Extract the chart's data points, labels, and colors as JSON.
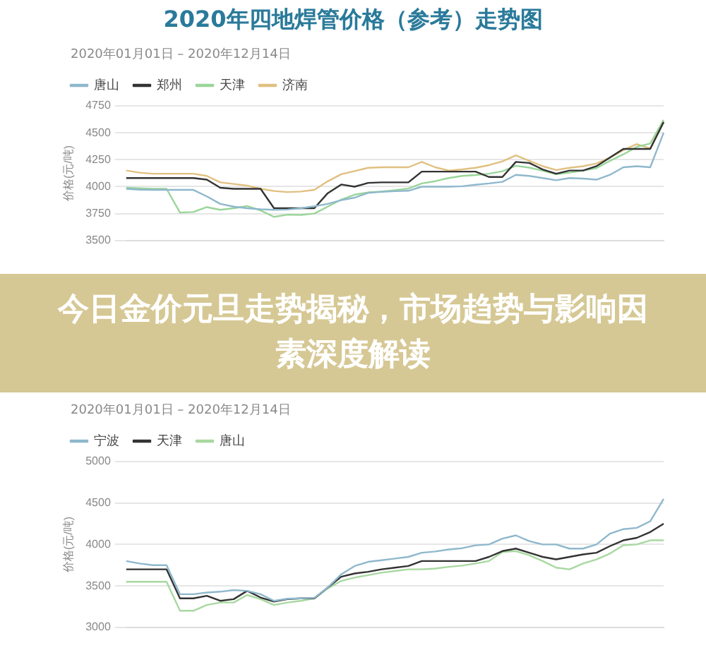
{
  "chart_data": [
    {
      "type": "line",
      "title": "2020年四地焊管价格（参考）走势图",
      "subtitle": "2020年01月01日 – 2020年12月14日",
      "ylabel": "价格(元/吨)",
      "annotations": [
        "今日金价元旦走势揭秘，市场趋势与影响因素深度解读"
      ],
      "categories": [
        null,
        null,
        null,
        null,
        null,
        null,
        null,
        null,
        null,
        null,
        null,
        null,
        null,
        null,
        null,
        null,
        null,
        null,
        null,
        null,
        null,
        null,
        null,
        null,
        null,
        null,
        null,
        null,
        null,
        null,
        null,
        null,
        null,
        null,
        null,
        null,
        null,
        null,
        null,
        null,
        null
      ],
      "ylim": [
        3500,
        4750
      ],
      "yticks": [
        3500,
        3750,
        4000,
        4250,
        4500,
        4750
      ],
      "grid": "y",
      "legend": "top left",
      "marker": "none",
      "line_style": "solid",
      "series": [
        {
          "name": "唐山",
          "color": "#8fb8cc",
          "values": [
            3980,
            3972,
            3970,
            3970,
            3970,
            3970,
            3910,
            3840,
            3815,
            3800,
            3790,
            3785,
            3788,
            3800,
            3818,
            3840,
            3875,
            3898,
            3942,
            3952,
            3958,
            3962,
            4000,
            4000,
            4000,
            4004,
            4018,
            4030,
            4045,
            4110,
            4100,
            4080,
            4060,
            4080,
            4075,
            4065,
            4110,
            4180,
            4190,
            4180,
            4500
          ]
        },
        {
          "name": "郑州",
          "color": "#333333",
          "values": [
            4080,
            4080,
            4080,
            4080,
            4080,
            4080,
            4065,
            3990,
            3980,
            3980,
            3980,
            3800,
            3800,
            3800,
            3800,
            3940,
            4020,
            4000,
            4035,
            4040,
            4040,
            4040,
            4140,
            4140,
            4140,
            4140,
            4140,
            4090,
            4090,
            4230,
            4220,
            4160,
            4120,
            4150,
            4150,
            4190,
            4270,
            4350,
            4350,
            4350,
            4600
          ]
        },
        {
          "name": "天津",
          "color": "#9ad59a",
          "values": [
            3990,
            3985,
            3980,
            3980,
            3760,
            3765,
            3810,
            3785,
            3800,
            3820,
            3780,
            3720,
            3740,
            3738,
            3750,
            3815,
            3880,
            3926,
            3947,
            3955,
            3967,
            3983,
            4030,
            4051,
            4080,
            4100,
            4108,
            4120,
            4143,
            4194,
            4177,
            4148,
            4115,
            4130,
            4150,
            4172,
            4240,
            4300,
            4370,
            4400,
            4620
          ]
        },
        {
          "name": "济南",
          "color": "#e0c080",
          "values": [
            4150,
            4130,
            4120,
            4120,
            4120,
            4120,
            4100,
            4040,
            4025,
            4010,
            3980,
            3960,
            3950,
            3955,
            3970,
            4050,
            4115,
            4145,
            4175,
            4180,
            4180,
            4180,
            4230,
            4180,
            4150,
            4160,
            4175,
            4200,
            4235,
            4290,
            4240,
            4190,
            4155,
            4175,
            4190,
            4215,
            4270,
            4340,
            4395,
            4355,
            4600
          ]
        }
      ]
    },
    {
      "type": "line",
      "subtitle": "2020年01月01日 – 2020年12月14日",
      "ylabel": "价格(元/吨)",
      "categories": [
        null,
        null,
        null,
        null,
        null,
        null,
        null,
        null,
        null,
        null,
        null,
        null,
        null,
        null,
        null,
        null,
        null,
        null,
        null,
        null,
        null,
        null,
        null,
        null,
        null,
        null,
        null,
        null,
        null,
        null,
        null,
        null,
        null,
        null,
        null,
        null,
        null,
        null,
        null,
        null,
        null
      ],
      "ylim": [
        3000,
        5000
      ],
      "yticks": [
        3000,
        3500,
        4000,
        4500,
        5000
      ],
      "grid": "y",
      "legend": "top left",
      "marker": "none",
      "line_style": "solid",
      "series": [
        {
          "name": "宁波",
          "color": "#8fb8cc",
          "values": [
            3800,
            3770,
            3750,
            3750,
            3400,
            3400,
            3420,
            3430,
            3450,
            3440,
            3400,
            3320,
            3345,
            3350,
            3355,
            3480,
            3640,
            3740,
            3790,
            3810,
            3830,
            3850,
            3900,
            3915,
            3940,
            3955,
            3990,
            4000,
            4070,
            4110,
            4040,
            4000,
            4000,
            3950,
            3950,
            4000,
            4130,
            4185,
            4200,
            4280,
            4550
          ]
        },
        {
          "name": "天津",
          "color": "#333333",
          "values": [
            3700,
            3700,
            3700,
            3700,
            3350,
            3350,
            3380,
            3320,
            3340,
            3440,
            3360,
            3310,
            3340,
            3350,
            3350,
            3480,
            3610,
            3650,
            3670,
            3700,
            3720,
            3740,
            3800,
            3800,
            3800,
            3800,
            3800,
            3850,
            3920,
            3950,
            3900,
            3850,
            3820,
            3850,
            3880,
            3900,
            3980,
            4050,
            4080,
            4150,
            4250
          ]
        },
        {
          "name": "唐山",
          "color": "#a8d8a0",
          "values": [
            3550,
            3550,
            3550,
            3550,
            3200,
            3200,
            3270,
            3300,
            3300,
            3390,
            3340,
            3270,
            3300,
            3320,
            3350,
            3470,
            3560,
            3600,
            3630,
            3660,
            3680,
            3700,
            3700,
            3710,
            3730,
            3745,
            3770,
            3800,
            3910,
            3920,
            3870,
            3800,
            3720,
            3700,
            3770,
            3820,
            3890,
            3990,
            4000,
            4050,
            4050
          ]
        }
      ]
    }
  ]
}
